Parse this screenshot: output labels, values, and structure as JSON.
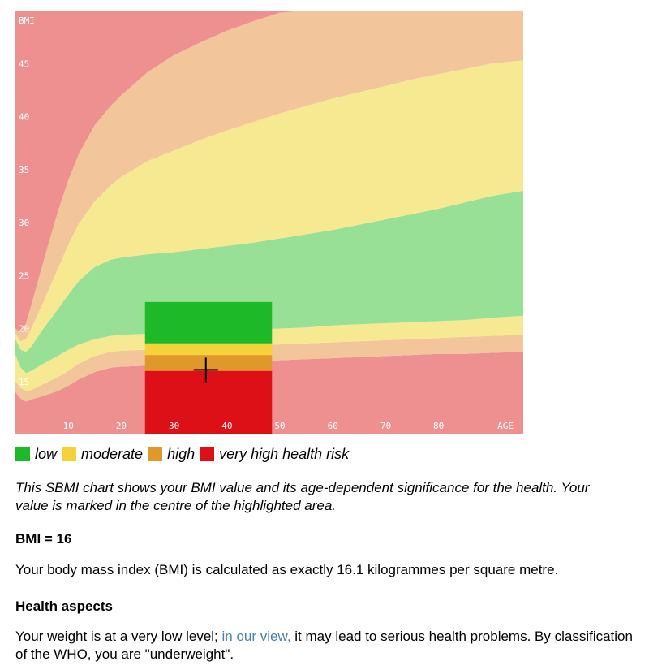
{
  "chart_data": {
    "type": "area",
    "xlabel": "AGE",
    "ylabel": "BMI",
    "xlim": [
      0,
      96
    ],
    "ylim": [
      10,
      50
    ],
    "x_ticks": [
      10,
      20,
      30,
      40,
      50,
      60,
      70,
      80
    ],
    "y_ticks": [
      15,
      20,
      25,
      30,
      35,
      40,
      45
    ],
    "ages": [
      0,
      1,
      2,
      3,
      5,
      8,
      10,
      12,
      15,
      18,
      20,
      25,
      30,
      35,
      40,
      45,
      50,
      55,
      60,
      65,
      70,
      75,
      80,
      85,
      90,
      96
    ],
    "boundaries": [
      {
        "name": "b1",
        "values": [
          14.0,
          13.4,
          13.1,
          13.3,
          13.6,
          14.1,
          14.6,
          15.2,
          15.9,
          16.3,
          16.4,
          16.5,
          16.6,
          16.7,
          16.8,
          16.9,
          17.0,
          17.1,
          17.2,
          17.3,
          17.4,
          17.5,
          17.6,
          17.6,
          17.7,
          17.8
        ]
      },
      {
        "name": "b2",
        "values": [
          15.0,
          14.4,
          14.1,
          14.2,
          14.7,
          15.4,
          16.0,
          16.7,
          17.4,
          17.8,
          17.9,
          18.0,
          18.1,
          18.2,
          18.3,
          18.4,
          18.5,
          18.6,
          18.7,
          18.8,
          18.9,
          19.0,
          19.1,
          19.2,
          19.3,
          19.4
        ]
      },
      {
        "name": "b3",
        "values": [
          17.5,
          16.3,
          15.8,
          16.0,
          16.6,
          17.4,
          18.0,
          18.5,
          19.0,
          19.3,
          19.4,
          19.5,
          19.6,
          19.7,
          19.8,
          19.9,
          20.0,
          20.1,
          20.3,
          20.4,
          20.5,
          20.6,
          20.7,
          20.8,
          21.0,
          21.2
        ]
      },
      {
        "name": "b4",
        "values": [
          19.0,
          18.0,
          17.8,
          18.3,
          19.8,
          21.8,
          23.2,
          24.5,
          25.8,
          26.5,
          26.7,
          27.0,
          27.2,
          27.5,
          27.8,
          28.1,
          28.5,
          28.9,
          29.3,
          29.8,
          30.3,
          30.8,
          31.3,
          31.9,
          32.5,
          33.0
        ]
      },
      {
        "name": "b5",
        "values": [
          19.5,
          18.8,
          19.0,
          20.0,
          22.2,
          25.6,
          27.9,
          29.9,
          32.0,
          33.5,
          34.3,
          35.8,
          36.8,
          37.8,
          38.7,
          39.5,
          40.3,
          41.0,
          41.7,
          42.3,
          42.9,
          43.5,
          44.0,
          44.5,
          45.0,
          45.3
        ]
      },
      {
        "name": "b6",
        "values": [
          20.0,
          19.6,
          20.5,
          22.2,
          25.8,
          31.0,
          34.0,
          36.5,
          39.2,
          41.0,
          42.0,
          44.2,
          45.8,
          47.0,
          48.1,
          49.0,
          49.8,
          50.0,
          50.0,
          50.0,
          50.0,
          50.0,
          50.0,
          50.0,
          50.0,
          50.0
        ]
      }
    ],
    "zone_colors": [
      "#ef9090",
      "#f2c59a",
      "#f7e992",
      "#97e096",
      "#f7e992",
      "#f2c59a",
      "#ef9090"
    ],
    "highlight": {
      "age_range": [
        24.5,
        48.5
      ],
      "low_range": [
        18.6,
        22.5
      ],
      "moderate_range": [
        17.5,
        18.6
      ],
      "high_range": [
        16.0,
        17.5
      ],
      "very_high_range": [
        10.0,
        16.0
      ],
      "marker_age": 36,
      "marker_bmi": 16.1,
      "colors": {
        "low": "#1eb928",
        "moderate": "#f6d23a",
        "high": "#e0982a",
        "very_high": "#dc1016"
      }
    }
  },
  "legend": [
    {
      "label": "low",
      "color": "#1eb928"
    },
    {
      "label": "moderate",
      "color": "#f6d23a"
    },
    {
      "label": "high",
      "color": "#e0982a"
    },
    {
      "label": "very high health risk",
      "color": "#dc1016"
    }
  ],
  "caption": "This SBMI chart shows your BMI value and its age-dependent significance for the health. Your value is marked in the centre of the highlighted area.",
  "bmi_heading": "BMI = 16",
  "bmi_text": "Your body mass index (BMI) is calculated as exactly 16.1 kilogrammes per square metre.",
  "health_heading": "Health aspects",
  "health_text_before": "Your weight is at a very low level; ",
  "health_link": "in our view,",
  "health_text_after": " it may lead to serious health problems. By classification of the WHO, you are \"underweight\"."
}
